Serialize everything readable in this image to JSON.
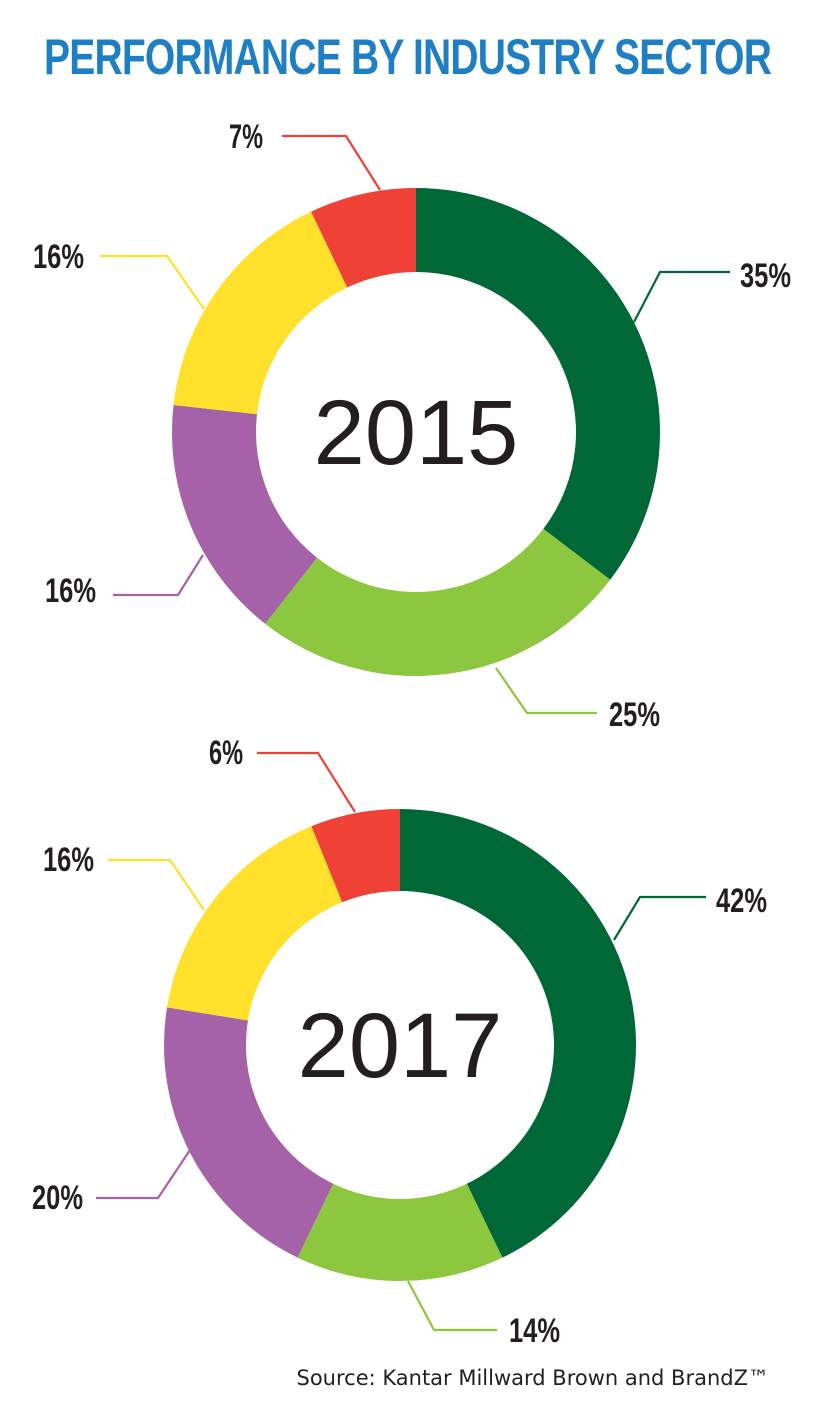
{
  "title": "PERFORMANCE BY INDUSTRY SECTOR",
  "source": "Source: Kantar Millward Brown and BrandZ™",
  "colors": {
    "title": "#1f7fc4",
    "dark_green": "#006837",
    "light_green": "#8dc63f",
    "purple": "#a562a8",
    "yellow": "#ffe12c",
    "red": "#ef4136"
  },
  "chart_data": [
    {
      "type": "pie",
      "variant": "donut",
      "center_label": "2015",
      "slices": [
        {
          "value": 35,
          "label": "35%",
          "color": "#006837"
        },
        {
          "value": 25,
          "label": "25%",
          "color": "#8dc63f"
        },
        {
          "value": 16,
          "label": "16%",
          "color": "#a562a8"
        },
        {
          "value": 16,
          "label": "16%",
          "color": "#ffe12c"
        },
        {
          "value": 7,
          "label": "7%",
          "color": "#ef4136"
        }
      ]
    },
    {
      "type": "pie",
      "variant": "donut",
      "center_label": "2017",
      "slices": [
        {
          "value": 42,
          "label": "42%",
          "color": "#006837"
        },
        {
          "value": 14,
          "label": "14%",
          "color": "#8dc63f"
        },
        {
          "value": 20,
          "label": "20%",
          "color": "#a562a8"
        },
        {
          "value": 16,
          "label": "16%",
          "color": "#ffe12c"
        },
        {
          "value": 6,
          "label": "6%",
          "color": "#ef4136"
        }
      ]
    }
  ]
}
